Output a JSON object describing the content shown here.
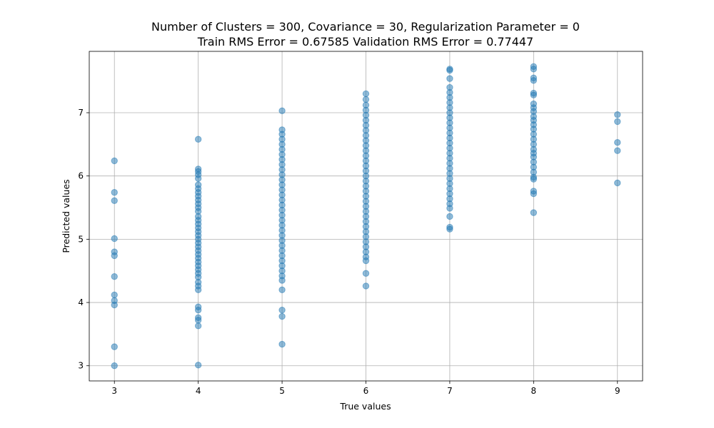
{
  "chart_data": {
    "type": "scatter",
    "title": "Number of Clusters = 300, Covariance = 30, Regularization Parameter = 0",
    "subtitle": "Train RMS Error = 0.67585 Validation RMS Error = 0.77447",
    "xlabel": "True values",
    "ylabel": "Predicted values",
    "xlim": [
      2.7,
      9.3
    ],
    "ylim": [
      2.76,
      7.97
    ],
    "xticks": [
      3,
      4,
      5,
      6,
      7,
      8,
      9
    ],
    "yticks": [
      3,
      4,
      5,
      6,
      7
    ],
    "grid": true,
    "marker_color": "#1f77b4",
    "marker_alpha": 0.5,
    "series": [
      {
        "points": [
          {
            "x": 3,
            "y": 6.24
          },
          {
            "x": 3,
            "y": 5.74
          },
          {
            "x": 3,
            "y": 5.61
          },
          {
            "x": 3,
            "y": 5.01
          },
          {
            "x": 3,
            "y": 4.8
          },
          {
            "x": 3,
            "y": 4.74
          },
          {
            "x": 3,
            "y": 4.41
          },
          {
            "x": 3,
            "y": 4.12
          },
          {
            "x": 3,
            "y": 4.03
          },
          {
            "x": 3,
            "y": 3.96
          },
          {
            "x": 3,
            "y": 3.3
          },
          {
            "x": 3,
            "y": 3.0
          },
          {
            "x": 4,
            "y": 6.58
          },
          {
            "x": 4,
            "y": 6.11
          },
          {
            "x": 4,
            "y": 6.07
          },
          {
            "x": 4,
            "y": 6.02
          },
          {
            "x": 4,
            "y": 5.96
          },
          {
            "x": 4,
            "y": 5.86
          },
          {
            "x": 4,
            "y": 5.8
          },
          {
            "x": 4,
            "y": 5.74
          },
          {
            "x": 4,
            "y": 5.68
          },
          {
            "x": 4,
            "y": 5.62
          },
          {
            "x": 4,
            "y": 5.56
          },
          {
            "x": 4,
            "y": 5.5
          },
          {
            "x": 4,
            "y": 5.44
          },
          {
            "x": 4,
            "y": 5.36
          },
          {
            "x": 4,
            "y": 5.3
          },
          {
            "x": 4,
            "y": 5.24
          },
          {
            "x": 4,
            "y": 5.18
          },
          {
            "x": 4,
            "y": 5.12
          },
          {
            "x": 4,
            "y": 5.06
          },
          {
            "x": 4,
            "y": 5.0
          },
          {
            "x": 4,
            "y": 4.94
          },
          {
            "x": 4,
            "y": 4.88
          },
          {
            "x": 4,
            "y": 4.82
          },
          {
            "x": 4,
            "y": 4.76
          },
          {
            "x": 4,
            "y": 4.7
          },
          {
            "x": 4,
            "y": 4.64
          },
          {
            "x": 4,
            "y": 4.58
          },
          {
            "x": 4,
            "y": 4.52
          },
          {
            "x": 4,
            "y": 4.46
          },
          {
            "x": 4,
            "y": 4.4
          },
          {
            "x": 4,
            "y": 4.32
          },
          {
            "x": 4,
            "y": 4.26
          },
          {
            "x": 4,
            "y": 4.2
          },
          {
            "x": 4,
            "y": 3.93
          },
          {
            "x": 4,
            "y": 3.88
          },
          {
            "x": 4,
            "y": 3.76
          },
          {
            "x": 4,
            "y": 3.72
          },
          {
            "x": 4,
            "y": 3.63
          },
          {
            "x": 4,
            "y": 3.01
          },
          {
            "x": 5,
            "y": 7.03
          },
          {
            "x": 5,
            "y": 6.73
          },
          {
            "x": 5,
            "y": 6.66
          },
          {
            "x": 5,
            "y": 6.58
          },
          {
            "x": 5,
            "y": 6.5
          },
          {
            "x": 5,
            "y": 6.42
          },
          {
            "x": 5,
            "y": 6.34
          },
          {
            "x": 5,
            "y": 6.26
          },
          {
            "x": 5,
            "y": 6.18
          },
          {
            "x": 5,
            "y": 6.1
          },
          {
            "x": 5,
            "y": 6.02
          },
          {
            "x": 5,
            "y": 5.94
          },
          {
            "x": 5,
            "y": 5.86
          },
          {
            "x": 5,
            "y": 5.78
          },
          {
            "x": 5,
            "y": 5.7
          },
          {
            "x": 5,
            "y": 5.62
          },
          {
            "x": 5,
            "y": 5.54
          },
          {
            "x": 5,
            "y": 5.46
          },
          {
            "x": 5,
            "y": 5.38
          },
          {
            "x": 5,
            "y": 5.3
          },
          {
            "x": 5,
            "y": 5.22
          },
          {
            "x": 5,
            "y": 5.14
          },
          {
            "x": 5,
            "y": 5.06
          },
          {
            "x": 5,
            "y": 4.98
          },
          {
            "x": 5,
            "y": 4.9
          },
          {
            "x": 5,
            "y": 4.82
          },
          {
            "x": 5,
            "y": 4.74
          },
          {
            "x": 5,
            "y": 4.66
          },
          {
            "x": 5,
            "y": 4.58
          },
          {
            "x": 5,
            "y": 4.5
          },
          {
            "x": 5,
            "y": 4.42
          },
          {
            "x": 5,
            "y": 4.35
          },
          {
            "x": 5,
            "y": 4.2
          },
          {
            "x": 5,
            "y": 3.88
          },
          {
            "x": 5,
            "y": 3.78
          },
          {
            "x": 5,
            "y": 3.34
          },
          {
            "x": 6,
            "y": 7.3
          },
          {
            "x": 6,
            "y": 7.21
          },
          {
            "x": 6,
            "y": 7.12
          },
          {
            "x": 6,
            "y": 7.04
          },
          {
            "x": 6,
            "y": 6.96
          },
          {
            "x": 6,
            "y": 6.88
          },
          {
            "x": 6,
            "y": 6.8
          },
          {
            "x": 6,
            "y": 6.72
          },
          {
            "x": 6,
            "y": 6.64
          },
          {
            "x": 6,
            "y": 6.56
          },
          {
            "x": 6,
            "y": 6.48
          },
          {
            "x": 6,
            "y": 6.4
          },
          {
            "x": 6,
            "y": 6.32
          },
          {
            "x": 6,
            "y": 6.24
          },
          {
            "x": 6,
            "y": 6.16
          },
          {
            "x": 6,
            "y": 6.08
          },
          {
            "x": 6,
            "y": 6.0
          },
          {
            "x": 6,
            "y": 5.92
          },
          {
            "x": 6,
            "y": 5.84
          },
          {
            "x": 6,
            "y": 5.76
          },
          {
            "x": 6,
            "y": 5.68
          },
          {
            "x": 6,
            "y": 5.6
          },
          {
            "x": 6,
            "y": 5.52
          },
          {
            "x": 6,
            "y": 5.44
          },
          {
            "x": 6,
            "y": 5.36
          },
          {
            "x": 6,
            "y": 5.28
          },
          {
            "x": 6,
            "y": 5.2
          },
          {
            "x": 6,
            "y": 5.12
          },
          {
            "x": 6,
            "y": 5.04
          },
          {
            "x": 6,
            "y": 4.96
          },
          {
            "x": 6,
            "y": 4.88
          },
          {
            "x": 6,
            "y": 4.8
          },
          {
            "x": 6,
            "y": 4.72
          },
          {
            "x": 6,
            "y": 4.66
          },
          {
            "x": 6,
            "y": 4.46
          },
          {
            "x": 6,
            "y": 4.26
          },
          {
            "x": 7,
            "y": 7.69
          },
          {
            "x": 7,
            "y": 7.67
          },
          {
            "x": 7,
            "y": 7.54
          },
          {
            "x": 7,
            "y": 7.4
          },
          {
            "x": 7,
            "y": 7.32
          },
          {
            "x": 7,
            "y": 7.24
          },
          {
            "x": 7,
            "y": 7.16
          },
          {
            "x": 7,
            "y": 7.08
          },
          {
            "x": 7,
            "y": 7.0
          },
          {
            "x": 7,
            "y": 6.92
          },
          {
            "x": 7,
            "y": 6.84
          },
          {
            "x": 7,
            "y": 6.76
          },
          {
            "x": 7,
            "y": 6.68
          },
          {
            "x": 7,
            "y": 6.6
          },
          {
            "x": 7,
            "y": 6.52
          },
          {
            "x": 7,
            "y": 6.44
          },
          {
            "x": 7,
            "y": 6.36
          },
          {
            "x": 7,
            "y": 6.28
          },
          {
            "x": 7,
            "y": 6.2
          },
          {
            "x": 7,
            "y": 6.12
          },
          {
            "x": 7,
            "y": 6.04
          },
          {
            "x": 7,
            "y": 5.96
          },
          {
            "x": 7,
            "y": 5.88
          },
          {
            "x": 7,
            "y": 5.8
          },
          {
            "x": 7,
            "y": 5.72
          },
          {
            "x": 7,
            "y": 5.64
          },
          {
            "x": 7,
            "y": 5.56
          },
          {
            "x": 7,
            "y": 5.49
          },
          {
            "x": 7,
            "y": 5.36
          },
          {
            "x": 7,
            "y": 5.19
          },
          {
            "x": 7,
            "y": 5.16
          },
          {
            "x": 8,
            "y": 7.73
          },
          {
            "x": 8,
            "y": 7.69
          },
          {
            "x": 8,
            "y": 7.55
          },
          {
            "x": 8,
            "y": 7.51
          },
          {
            "x": 8,
            "y": 7.31
          },
          {
            "x": 8,
            "y": 7.28
          },
          {
            "x": 8,
            "y": 7.14
          },
          {
            "x": 8,
            "y": 7.08
          },
          {
            "x": 8,
            "y": 7.02
          },
          {
            "x": 8,
            "y": 6.94
          },
          {
            "x": 8,
            "y": 6.88
          },
          {
            "x": 8,
            "y": 6.81
          },
          {
            "x": 8,
            "y": 6.74
          },
          {
            "x": 8,
            "y": 6.66
          },
          {
            "x": 8,
            "y": 6.58
          },
          {
            "x": 8,
            "y": 6.5
          },
          {
            "x": 8,
            "y": 6.42
          },
          {
            "x": 8,
            "y": 6.36
          },
          {
            "x": 8,
            "y": 6.3
          },
          {
            "x": 8,
            "y": 6.22
          },
          {
            "x": 8,
            "y": 6.14
          },
          {
            "x": 8,
            "y": 6.06
          },
          {
            "x": 8,
            "y": 5.98
          },
          {
            "x": 8,
            "y": 5.95
          },
          {
            "x": 8,
            "y": 5.76
          },
          {
            "x": 8,
            "y": 5.72
          },
          {
            "x": 8,
            "y": 5.42
          },
          {
            "x": 9,
            "y": 6.97
          },
          {
            "x": 9,
            "y": 6.86
          },
          {
            "x": 9,
            "y": 6.53
          },
          {
            "x": 9,
            "y": 6.4
          },
          {
            "x": 9,
            "y": 5.89
          }
        ]
      }
    ]
  }
}
